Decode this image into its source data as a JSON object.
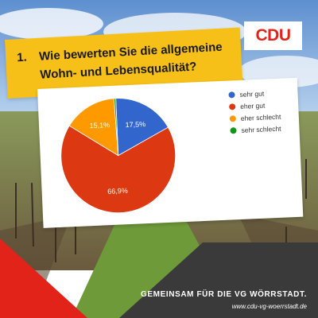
{
  "brand": {
    "logo_text": "CDU",
    "primary_color": "#e2231a",
    "accent_yellow": "#f6c018"
  },
  "question": {
    "number": "1.",
    "line1": "Wie bewerten Sie die allgemeine",
    "line2": "Wohn- und Lebensqualität?"
  },
  "chart_data": {
    "type": "pie",
    "categories": [
      "sehr gut",
      "eher gut",
      "eher schlecht",
      "sehr schlecht"
    ],
    "values": [
      17.5,
      66.9,
      15.1,
      0.5
    ],
    "data_labels": [
      "17,5%",
      "66,9%",
      "15,1%",
      ""
    ],
    "colors": [
      "#3366cc",
      "#dc3912",
      "#ff9900",
      "#109618"
    ],
    "legend_position": "right"
  },
  "footer": {
    "slogan": "GEMEINSAM FÜR DIE VG WÖRRSTADT.",
    "url": "www.cdu-vg-woerrstadt.de"
  }
}
